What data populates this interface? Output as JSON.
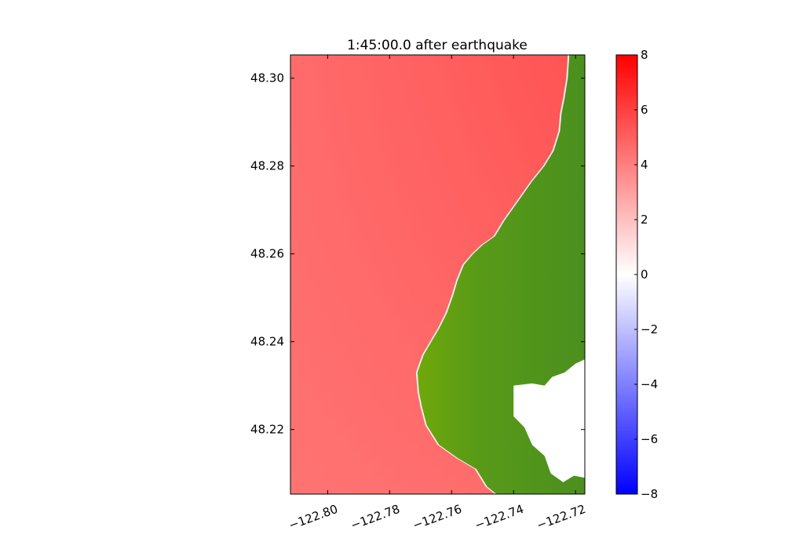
{
  "chart_data": {
    "type": "heatmap",
    "title": "1:45:00.0 after earthquake",
    "xlabel": "",
    "ylabel": "",
    "xlim": [
      -122.812,
      -122.717
    ],
    "ylim": [
      48.2053,
      48.3053
    ],
    "x_ticks": [
      -122.8,
      -122.78,
      -122.76,
      -122.74,
      -122.72
    ],
    "x_tick_labels": [
      "−122.80",
      "−122.78",
      "−122.76",
      "−122.74",
      "−122.72"
    ],
    "y_ticks": [
      48.22,
      48.24,
      48.26,
      48.28,
      48.3
    ],
    "y_tick_labels": [
      "48.22",
      "48.24",
      "48.26",
      "48.28",
      "48.30"
    ],
    "colorbar": {
      "min": -8,
      "max": 8,
      "ticks": [
        8,
        6,
        4,
        2,
        0,
        -2,
        -4,
        -6,
        -8
      ],
      "tick_labels": [
        "8",
        "6",
        "4",
        "2",
        "0",
        "−2",
        "−4",
        "−6",
        "−8"
      ],
      "colormap": [
        "#0000ff",
        "#ffffff",
        "#ff0000"
      ]
    },
    "water_surface_value_approx": 5,
    "land_color": "#4a8f1f",
    "land_highlight_color": "#78b000",
    "shoreline": [
      [
        -122.722,
        48.3053
      ],
      [
        -122.7225,
        48.3
      ],
      [
        -122.7235,
        48.2955
      ],
      [
        -122.7245,
        48.292
      ],
      [
        -122.725,
        48.288
      ],
      [
        -122.727,
        48.2835
      ],
      [
        -122.73,
        48.28
      ],
      [
        -122.734,
        48.2765
      ],
      [
        -122.737,
        48.2735
      ],
      [
        -122.74,
        48.2705
      ],
      [
        -122.743,
        48.2675
      ],
      [
        -122.746,
        48.264
      ],
      [
        -122.75,
        48.262
      ],
      [
        -122.753,
        48.26
      ],
      [
        -122.756,
        48.2575
      ],
      [
        -122.758,
        48.254
      ],
      [
        -122.7595,
        48.2505
      ],
      [
        -122.7615,
        48.2465
      ],
      [
        -122.764,
        48.243
      ],
      [
        -122.7665,
        48.24
      ],
      [
        -122.769,
        48.237
      ],
      [
        -122.771,
        48.233
      ],
      [
        -122.7705,
        48.2285
      ],
      [
        -122.7695,
        48.225
      ],
      [
        -122.768,
        48.221
      ],
      [
        -122.764,
        48.2165
      ],
      [
        -122.758,
        48.2135
      ],
      [
        -122.752,
        48.211
      ],
      [
        -122.7485,
        48.207
      ],
      [
        -122.7455,
        48.2053
      ]
    ],
    "dry_region": [
      [
        -122.717,
        48.236
      ],
      [
        -122.72,
        48.235
      ],
      [
        -122.7235,
        48.233
      ],
      [
        -122.7275,
        48.232
      ],
      [
        -122.73,
        48.23
      ],
      [
        -122.734,
        48.2305
      ],
      [
        -122.74,
        48.23
      ],
      [
        -122.74,
        48.223
      ],
      [
        -122.7365,
        48.2205
      ],
      [
        -122.734,
        48.2165
      ],
      [
        -122.73,
        48.214
      ],
      [
        -122.728,
        48.21
      ],
      [
        -122.724,
        48.208
      ],
      [
        -122.7205,
        48.2095
      ],
      [
        -122.717,
        48.209
      ]
    ],
    "grid": false
  }
}
